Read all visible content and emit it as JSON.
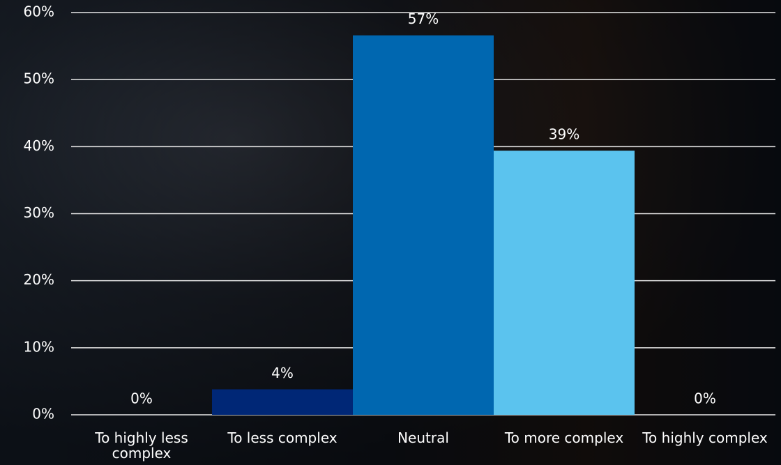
{
  "chart_data": {
    "type": "bar",
    "categories": [
      "To highly less complex",
      "To less complex",
      "Neutral",
      "To more complex",
      "To highly complex"
    ],
    "values": [
      0,
      3.8,
      56.6,
      39.4,
      0
    ],
    "value_labels": [
      "0%",
      "4%",
      "57%",
      "39%",
      "0%"
    ],
    "colors": [
      "#002776",
      "#002776",
      "#0067b0",
      "#5bc3ee",
      "#5bc3ee"
    ],
    "ylim": [
      0,
      60
    ],
    "yticks": [
      {
        "value": 0,
        "label": "0%"
      },
      {
        "value": 10,
        "label": "10%"
      },
      {
        "value": 20,
        "label": "20%"
      },
      {
        "value": 30,
        "label": "30%"
      },
      {
        "value": 40,
        "label": "40%"
      },
      {
        "value": 50,
        "label": "50%"
      },
      {
        "value": 60,
        "label": "60%"
      }
    ],
    "grid": true
  }
}
